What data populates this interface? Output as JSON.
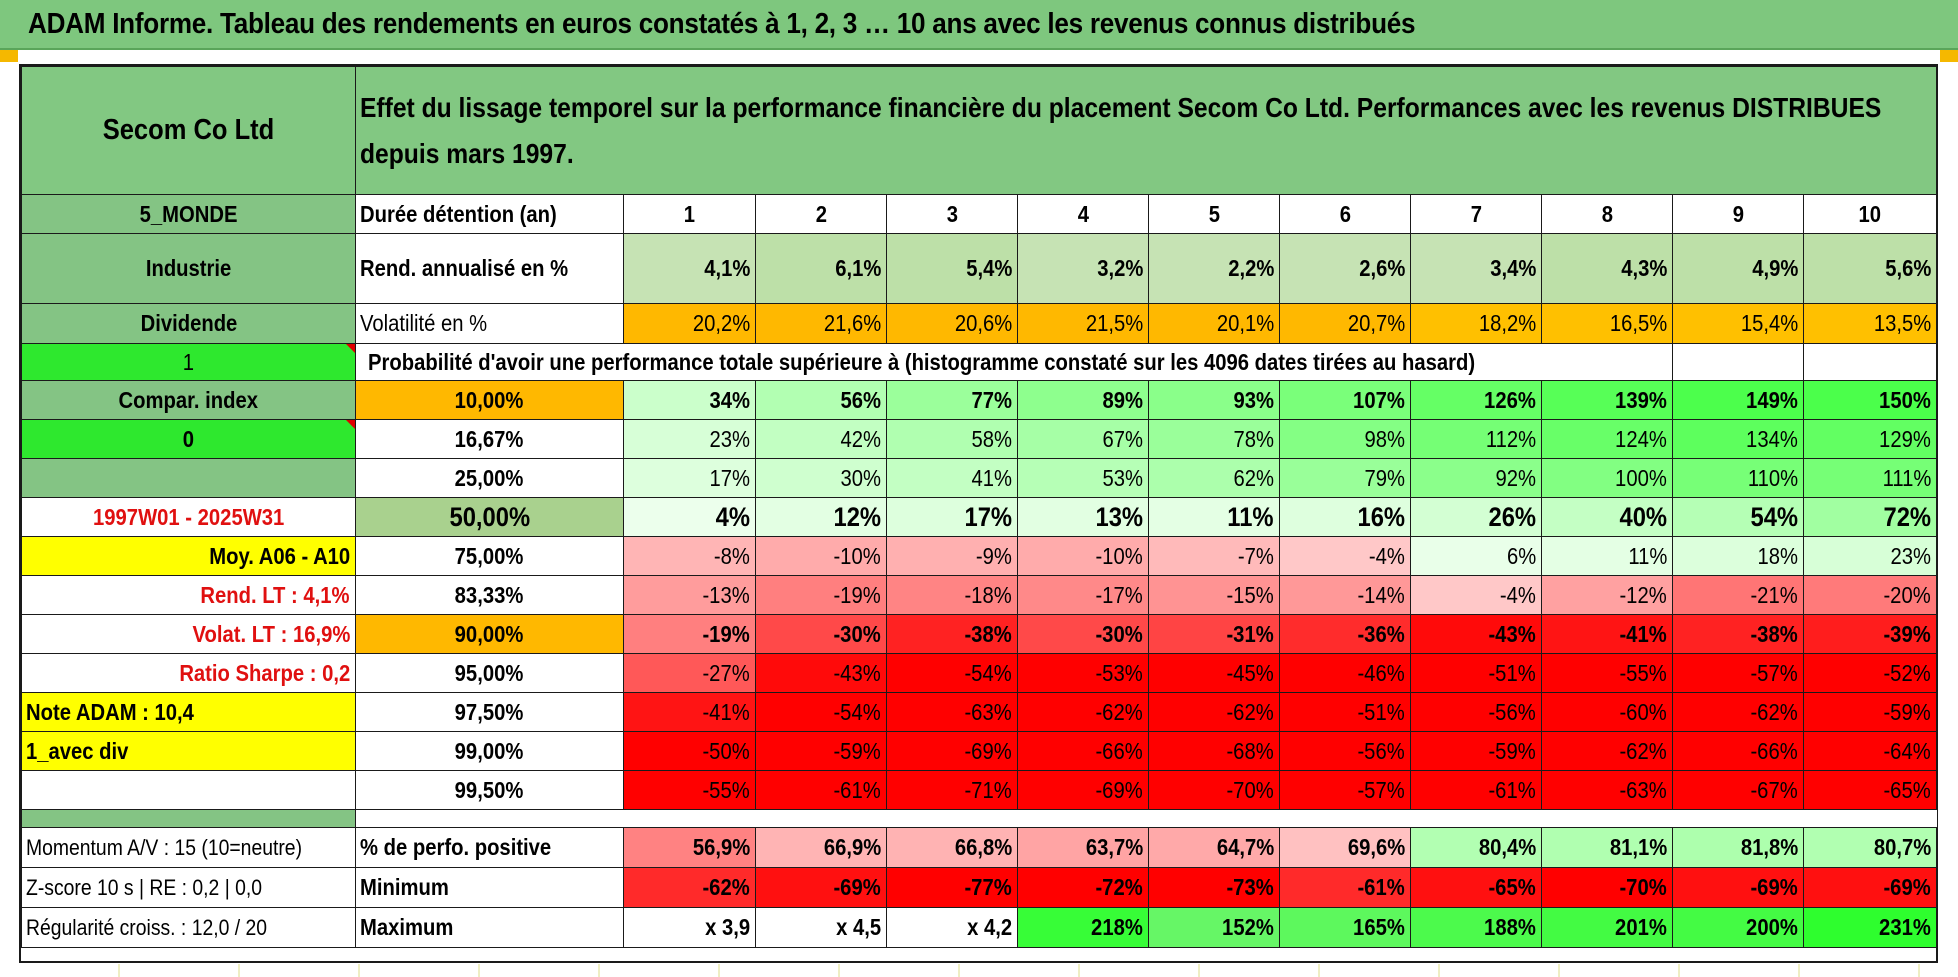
{
  "title": "ADAM Informe. Tableau des rendements en euros constatés à 1, 2, 3 … 10 ans avec les revenus connus distribués",
  "header": {
    "name": "Secom Co Ltd",
    "desc_line1": "Effet du lissage temporel sur la performance financière du placement Secom Co Ltd. Performances avec les revenus DISTRIBUES",
    "desc_line2": "depuis mars 1997."
  },
  "left": {
    "region": "5_MONDE",
    "sector": "Industrie",
    "type": "Dividende",
    "flag1": "1",
    "compar": "Compar. index",
    "flag0": "0",
    "blank": "",
    "period": "1997W01 - 2025W31",
    "moy": "Moy. A06 - A10",
    "rend_lt": "Rend. LT :    4,1%",
    "volat_lt": "Volat. LT :    16,9%",
    "sharpe": "Ratio Sharpe :    0,2",
    "note": "Note ADAM : 10,4",
    "avec_div": "1_avec div",
    "momentum": "Momentum A/V : 15 (10=neutre)",
    "zscore": "Z-score 10 s | RE : 0,2 | 0,0",
    "regularite": "Régularité croiss. : 12,0 / 20"
  },
  "labels": {
    "duree": "Durée détention (an)",
    "rend": "Rend. annualisé en %",
    "vol": "Volatilité en %",
    "proba": "Probabilité d'avoir une performance totale supérieure à (histogramme constaté sur les 4096 dates tirées au hasard)",
    "pct_pos": "% de perfo. positive",
    "minimum": "Minimum",
    "maximum": "Maximum"
  },
  "years": [
    "1",
    "2",
    "3",
    "4",
    "5",
    "6",
    "7",
    "8",
    "9",
    "10"
  ],
  "rend": [
    "4,1%",
    "6,1%",
    "5,4%",
    "3,2%",
    "2,2%",
    "2,6%",
    "3,4%",
    "4,3%",
    "4,9%",
    "5,6%"
  ],
  "vol": [
    "20,2%",
    "21,6%",
    "20,6%",
    "21,5%",
    "20,1%",
    "20,7%",
    "18,2%",
    "16,5%",
    "15,4%",
    "13,5%"
  ],
  "quantiles": [
    {
      "q": "10,00%",
      "v": [
        "34%",
        "56%",
        "77%",
        "89%",
        "93%",
        "107%",
        "126%",
        "139%",
        "149%",
        "150%"
      ]
    },
    {
      "q": "16,67%",
      "v": [
        "23%",
        "42%",
        "58%",
        "67%",
        "78%",
        "98%",
        "112%",
        "124%",
        "134%",
        "129%"
      ]
    },
    {
      "q": "25,00%",
      "v": [
        "17%",
        "30%",
        "41%",
        "53%",
        "62%",
        "79%",
        "92%",
        "100%",
        "110%",
        "111%"
      ]
    },
    {
      "q": "50,00%",
      "v": [
        "4%",
        "12%",
        "17%",
        "13%",
        "11%",
        "16%",
        "26%",
        "40%",
        "54%",
        "72%"
      ]
    },
    {
      "q": "75,00%",
      "v": [
        "-8%",
        "-10%",
        "-9%",
        "-10%",
        "-7%",
        "-4%",
        "6%",
        "11%",
        "18%",
        "23%"
      ]
    },
    {
      "q": "83,33%",
      "v": [
        "-13%",
        "-19%",
        "-18%",
        "-17%",
        "-15%",
        "-14%",
        "-4%",
        "-12%",
        "-21%",
        "-20%"
      ]
    },
    {
      "q": "90,00%",
      "v": [
        "-19%",
        "-30%",
        "-38%",
        "-30%",
        "-31%",
        "-36%",
        "-43%",
        "-41%",
        "-38%",
        "-39%"
      ]
    },
    {
      "q": "95,00%",
      "v": [
        "-27%",
        "-43%",
        "-54%",
        "-53%",
        "-45%",
        "-46%",
        "-51%",
        "-55%",
        "-57%",
        "-52%"
      ]
    },
    {
      "q": "97,50%",
      "v": [
        "-41%",
        "-54%",
        "-63%",
        "-62%",
        "-62%",
        "-51%",
        "-56%",
        "-60%",
        "-62%",
        "-59%"
      ]
    },
    {
      "q": "99,00%",
      "v": [
        "-50%",
        "-59%",
        "-69%",
        "-66%",
        "-68%",
        "-56%",
        "-59%",
        "-62%",
        "-66%",
        "-64%"
      ]
    },
    {
      "q": "99,50%",
      "v": [
        "-55%",
        "-61%",
        "-71%",
        "-69%",
        "-70%",
        "-57%",
        "-61%",
        "-63%",
        "-67%",
        "-65%"
      ]
    }
  ],
  "pct_pos": [
    "56,9%",
    "66,9%",
    "66,8%",
    "63,7%",
    "64,7%",
    "69,6%",
    "80,4%",
    "81,1%",
    "81,8%",
    "80,7%"
  ],
  "minimum": [
    "-62%",
    "-69%",
    "-77%",
    "-72%",
    "-73%",
    "-61%",
    "-65%",
    "-70%",
    "-69%",
    "-69%"
  ],
  "maximum": [
    "x 3,9",
    "x 4,5",
    "x 4,2",
    "218%",
    "152%",
    "165%",
    "188%",
    "201%",
    "200%",
    "231%"
  ],
  "colors": {
    "header_green": "#82c882",
    "bright_green": "#2ee82e",
    "yellow": "#ffff00",
    "orange": "#ffb800",
    "red_text": "#e01010",
    "deep_red": "#ff0000"
  }
}
